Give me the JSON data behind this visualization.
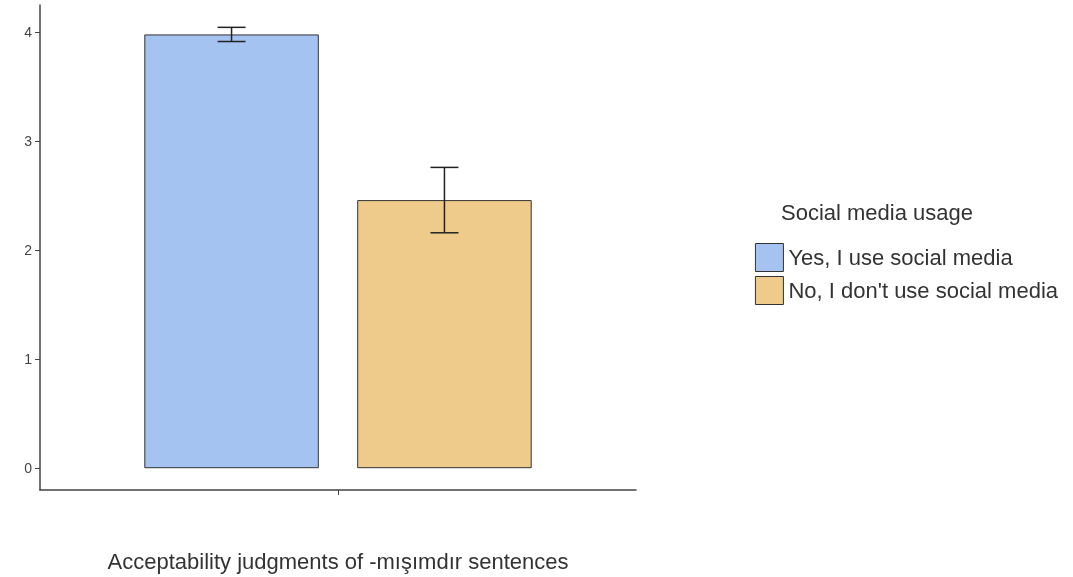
{
  "chart_data": {
    "type": "bar",
    "xlabel": "Acceptability judgments of -mışımdır sentences",
    "legend_title": "Social media usage",
    "categories": [
      null
    ],
    "series": [
      {
        "name": "Yes, I use social media",
        "color": "#a4c3f0",
        "values": [
          3.98
        ],
        "errors": [
          0.065
        ]
      },
      {
        "name": "No, I don't use social media",
        "color": "#eecb8b",
        "values": [
          2.46
        ],
        "errors": [
          0.3
        ]
      }
    ],
    "ylim": [
      -0.2,
      4.25
    ],
    "yticks": [
      0,
      1,
      2,
      3,
      4
    ],
    "legend": "right"
  }
}
